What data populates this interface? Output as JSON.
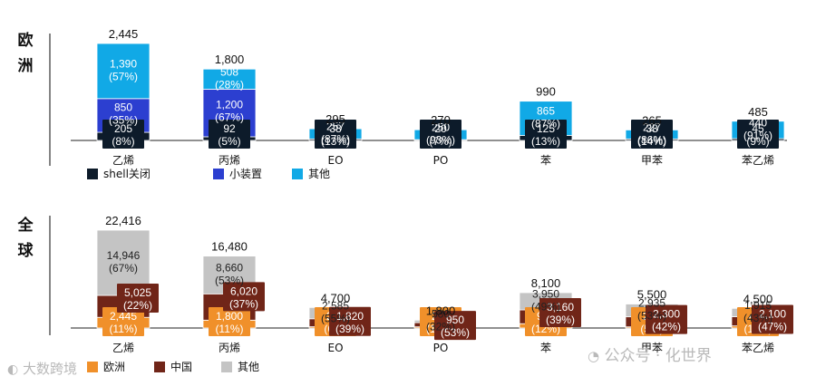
{
  "chart_data": [
    {
      "type": "bar",
      "stacked": true,
      "panel_label": "欧洲",
      "categories": [
        "乙烯",
        "丙烯",
        "EO",
        "PO",
        "苯",
        "甲苯",
        "苯乙烯"
      ],
      "totals": [
        "2,445",
        "1,800",
        "295",
        "270",
        "990",
        "265",
        "485"
      ],
      "series": [
        {
          "name": "shell关闭",
          "color": "#0d1b2a",
          "values": [
            205,
            92,
            38,
            20,
            125,
            38,
            45
          ],
          "labels": [
            "205",
            "92",
            "38",
            "20",
            "125",
            "38",
            "45"
          ],
          "percents": [
            "(8%)",
            "(5%)",
            "(13%)",
            "(7%)",
            "(13%)",
            "(14%)",
            "(9%)"
          ]
        },
        {
          "name": "小装置",
          "color": "#2c3fd0",
          "values": [
            850,
            1200,
            0,
            0,
            0,
            0,
            0
          ],
          "labels": [
            "850",
            "1,200",
            "",
            "",
            "",
            "",
            ""
          ],
          "percents": [
            "(35%)",
            "(67%)",
            "",
            "",
            "",
            "",
            ""
          ]
        },
        {
          "name": "其他",
          "color": "#11a9e6",
          "values": [
            1390,
            508,
            257,
            250,
            865,
            227,
            440
          ],
          "labels": [
            "1,390",
            "508",
            "257",
            "250",
            "865",
            "227",
            "440"
          ],
          "percents": [
            "(57%)",
            "(28%)",
            "(87%)",
            "(93%)",
            "(87%)",
            "(86%)",
            "(91%)"
          ]
        }
      ]
    },
    {
      "type": "bar",
      "stacked": true,
      "panel_label": "全球",
      "categories": [
        "乙烯",
        "丙烯",
        "EO",
        "PO",
        "苯",
        "甲苯",
        "苯乙烯"
      ],
      "totals": [
        "22,416",
        "16,480",
        "4,700",
        "1,800",
        "8,100",
        "5,500",
        "4,500"
      ],
      "series": [
        {
          "name": "欧洲",
          "color": "#f0902a",
          "values": [
            2445,
            1800,
            295,
            270,
            990,
            265,
            485
          ],
          "labels": [
            "2,445",
            "1,800",
            "295",
            "270",
            "990",
            "265",
            "485"
          ],
          "percents": [
            "(11%)",
            "(11%)",
            "(6%)",
            "(15%)",
            "(12%)",
            "(5%)",
            "(11%)"
          ]
        },
        {
          "name": "中国",
          "color": "#702518",
          "values": [
            5025,
            6020,
            1820,
            950,
            3160,
            2300,
            2100
          ],
          "labels": [
            "5,025",
            "6,020",
            "1,820",
            "950",
            "3,160",
            "2,300",
            "2,100"
          ],
          "percents": [
            "(22%)",
            "(37%)",
            "(39%)",
            "(53%)",
            "(39%)",
            "(42%)",
            "(47%)"
          ]
        },
        {
          "name": "其他",
          "color": "#c4c4c4",
          "values": [
            14946,
            8660,
            2585,
            580,
            3950,
            2935,
            1915
          ],
          "labels": [
            "14,946",
            "8,660",
            "2,585",
            "580",
            "3,950",
            "2,935",
            "1,915"
          ],
          "percents": [
            "(67%)",
            "(53%)",
            "(55%)",
            "(32%)",
            "(49%)",
            "(53%)",
            "(43%)"
          ]
        }
      ]
    }
  ],
  "watermarks": {
    "left": "大数跨境",
    "right": "公众号 · 化世界"
  }
}
